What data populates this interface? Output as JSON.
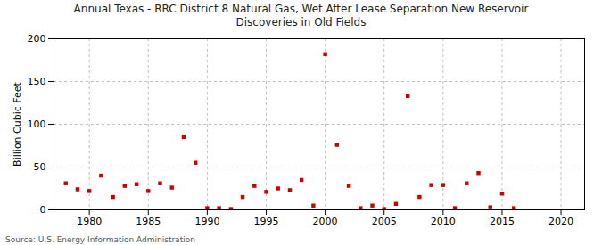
{
  "chart_data": {
    "type": "scatter",
    "title": "Annual Texas - RRC District 8 Natural Gas, Wet After Lease Separation New Reservoir\nDiscoveries in Old Fields",
    "ylabel": "Billion Cubic Feet",
    "source": "Source: U.S. Energy Information Administration",
    "x": [
      1978,
      1979,
      1980,
      1981,
      1982,
      1983,
      1984,
      1985,
      1986,
      1987,
      1988,
      1989,
      1990,
      1991,
      1992,
      1993,
      1994,
      1995,
      1996,
      1997,
      1998,
      1999,
      2000,
      2001,
      2002,
      2003,
      2004,
      2005,
      2006,
      2007,
      2008,
      2009,
      2010,
      2011,
      2012,
      2013,
      2014,
      2015,
      2016
    ],
    "values": [
      31,
      24,
      22,
      40,
      15,
      28,
      30,
      22,
      31,
      26,
      85,
      55,
      2,
      2,
      1,
      15,
      28,
      21,
      25,
      23,
      35,
      5,
      182,
      76,
      28,
      2,
      5,
      1,
      7,
      133,
      15,
      29,
      29,
      2,
      31,
      43,
      3,
      19,
      2
    ],
    "color": "#cc0000",
    "marker": "square",
    "xlim": [
      1977,
      2022
    ],
    "ylim": [
      0,
      200
    ],
    "xticks": [
      1980,
      1985,
      1990,
      1995,
      2000,
      2005,
      2010,
      2015,
      2020
    ],
    "yticks": [
      0,
      50,
      100,
      150,
      200
    ],
    "grid": true
  }
}
